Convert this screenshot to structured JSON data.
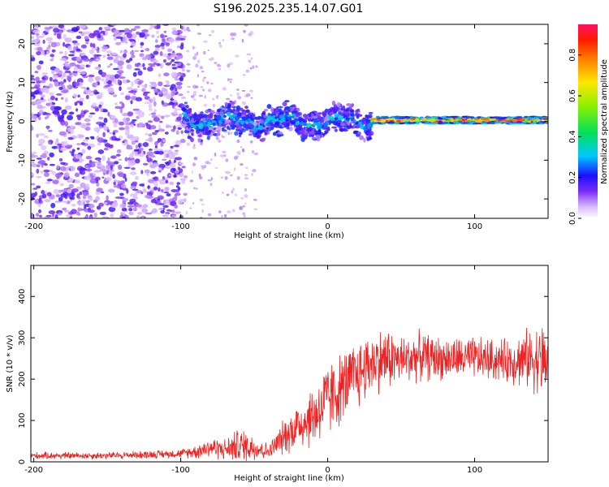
{
  "title": "S196.2025.235.14.07.G01",
  "chart_data": [
    {
      "type": "heatmap",
      "name": "spectrogram",
      "xlabel": "Height of straight line (km)",
      "ylabel": "Frequency (Hz)",
      "xlim": [
        -202,
        150
      ],
      "ylim": [
        -25,
        25
      ],
      "xticks": [
        -200,
        -100,
        0,
        100
      ],
      "yticks": [
        -20,
        -10,
        0,
        10,
        20
      ],
      "xtick_labels": [
        "-200",
        "-100",
        "0",
        "100"
      ],
      "ytick_labels": [
        "-20",
        "-10",
        "0",
        "10",
        "20"
      ],
      "colorbar": {
        "label": "Normalized spectral amplitude",
        "range": [
          0,
          0.95
        ],
        "ticks": [
          0.0,
          0.2,
          0.4,
          0.6,
          0.8
        ],
        "tick_labels": [
          "0.0",
          "0.2",
          "0.4",
          "0.6",
          "0.8"
        ]
      },
      "description_regions": [
        {
          "x_range": [
            -202,
            -98
          ],
          "y_range": [
            -25,
            25
          ],
          "amplitude_range": [
            0.05,
            0.2
          ]
        },
        {
          "x_range": [
            -98,
            30
          ],
          "y_range": [
            -4,
            5
          ],
          "amplitude_range": [
            0.1,
            0.35
          ]
        },
        {
          "x_range": [
            30,
            150
          ],
          "y_range": [
            -0.8,
            1.5
          ],
          "amplitude_range": [
            0.3,
            0.95
          ]
        }
      ]
    },
    {
      "type": "line",
      "name": "snr",
      "xlabel": "Height of straight line (km)",
      "ylabel": "SNR (10 * v/v)",
      "xlim": [
        -202,
        150
      ],
      "ylim": [
        0,
        475
      ],
      "xticks": [
        -200,
        -100,
        0,
        100
      ],
      "yticks": [
        0,
        100,
        200,
        300,
        400
      ],
      "xtick_labels": [
        "-200",
        "-100",
        "0",
        "100"
      ],
      "ytick_labels": [
        "0",
        "100",
        "200",
        "300",
        "400"
      ],
      "color": "#ee2222",
      "envelope": {
        "x": [
          -202,
          -150,
          -100,
          -90,
          -80,
          -70,
          -60,
          -50,
          -40,
          -30,
          -20,
          -10,
          0,
          10,
          20,
          30,
          40,
          50,
          60,
          80,
          100,
          120,
          140,
          150
        ],
        "y_mean": [
          15,
          15,
          20,
          25,
          35,
          30,
          40,
          35,
          25,
          60,
          90,
          110,
          150,
          180,
          210,
          240,
          250,
          245,
          255,
          250,
          250,
          245,
          250,
          240
        ],
        "y_spread": [
          10,
          10,
          12,
          20,
          30,
          30,
          50,
          40,
          20,
          50,
          70,
          90,
          110,
          100,
          100,
          90,
          90,
          70,
          70,
          60,
          60,
          60,
          90,
          120
        ]
      }
    }
  ]
}
